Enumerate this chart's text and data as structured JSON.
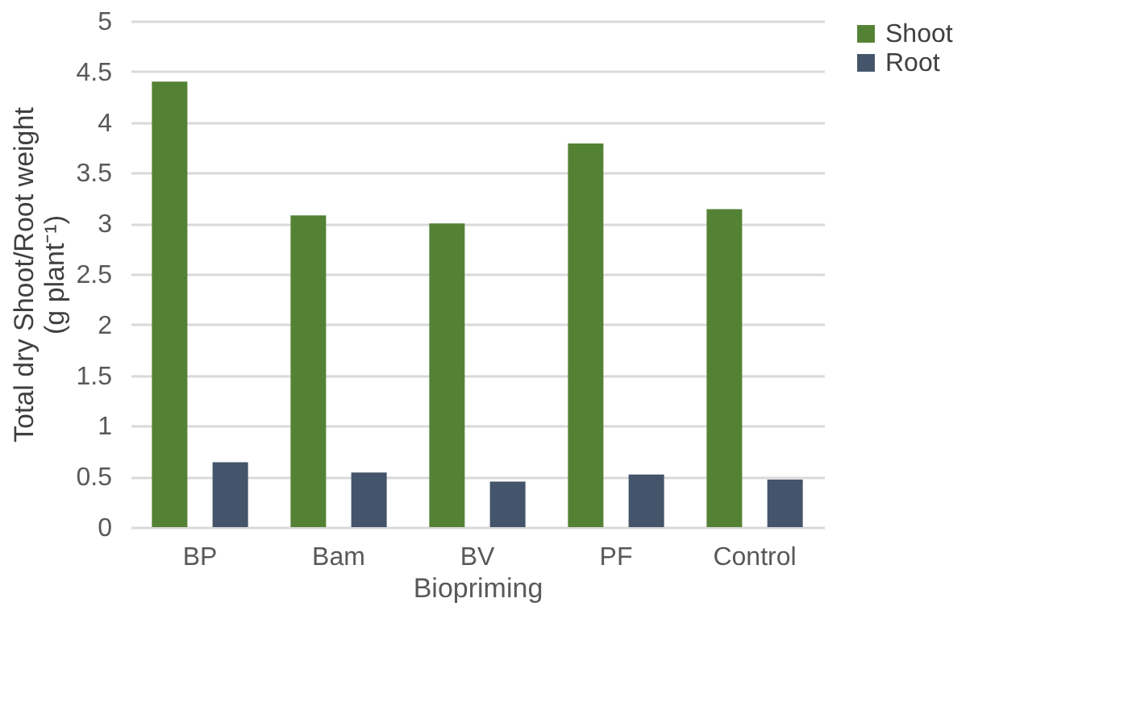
{
  "chart_data": {
    "type": "bar",
    "xlabel": "Biopriming",
    "ylabel": "Total dry Shoot/Root weight\n(g plant⁻¹)",
    "categories": [
      "BP",
      "Bam",
      "BV",
      "PF",
      "Control"
    ],
    "series": [
      {
        "name": "Shoot",
        "color": "#548235",
        "values": [
          4.4,
          3.08,
          3.0,
          3.79,
          3.14
        ]
      },
      {
        "name": "Root",
        "color": "#44546a",
        "values": [
          0.64,
          0.54,
          0.45,
          0.52,
          0.47
        ]
      }
    ],
    "ylim": [
      0,
      5
    ],
    "yticks": [
      0,
      0.5,
      1,
      1.5,
      2,
      2.5,
      3,
      3.5,
      4,
      4.5,
      5
    ],
    "grid": "y",
    "legend": "right"
  }
}
